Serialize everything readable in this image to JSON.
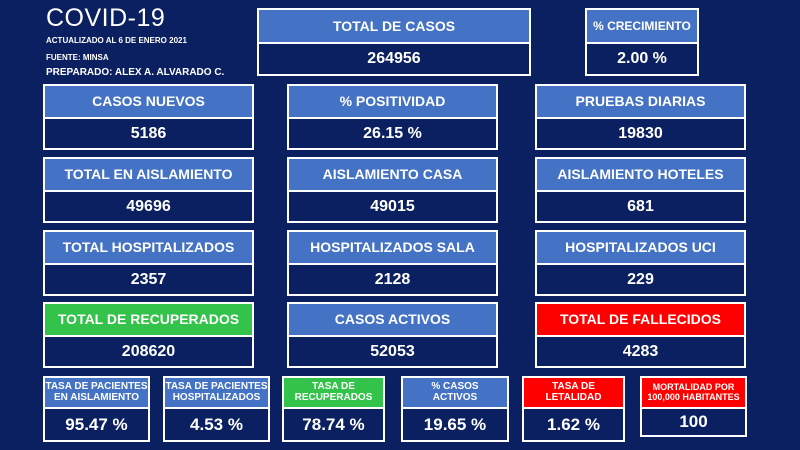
{
  "header": {
    "title": "COVID-19",
    "updated": "ACTUALIZADO AL 6 DE ENERO 2021",
    "source": "FUENTE: MINSA",
    "prepared": "PREPARADO:  ALEX A. ALVARADO  C."
  },
  "cards": {
    "total_casos": {
      "label": "TOTAL DE CASOS",
      "value": "264956"
    },
    "crecimiento": {
      "label": "% CRECIMIENTO",
      "value": "2.00 %"
    },
    "casos_nuevos": {
      "label": "CASOS NUEVOS",
      "value": "5186"
    },
    "positividad": {
      "label": "% POSITIVIDAD",
      "value": "26.15 %"
    },
    "pruebas_diarias": {
      "label": "PRUEBAS DIARIAS",
      "value": "19830"
    },
    "total_aislamiento": {
      "label": "TOTAL EN AISLAMIENTO",
      "value": "49696"
    },
    "aislamiento_casa": {
      "label": "AISLAMIENTO CASA",
      "value": "49015"
    },
    "aislamiento_hoteles": {
      "label": "AISLAMIENTO HOTELES",
      "value": "681"
    },
    "total_hospitalizados": {
      "label": "TOTAL HOSPITALIZADOS",
      "value": "2357"
    },
    "hospitalizados_sala": {
      "label": "HOSPITALIZADOS SALA",
      "value": "2128"
    },
    "hospitalizados_uci": {
      "label": "HOSPITALIZADOS UCI",
      "value": "229"
    },
    "total_recuperados": {
      "label": "TOTAL DE RECUPERADOS",
      "value": "208620"
    },
    "casos_activos": {
      "label": "CASOS ACTIVOS",
      "value": "52053"
    },
    "total_fallecidos": {
      "label": "TOTAL DE FALLECIDOS",
      "value": "4283"
    }
  },
  "rates": {
    "tasa_aislamiento": {
      "label_1": "TASA DE PACIENTES",
      "label_2": "EN AISLAMIENTO",
      "value": "95.47 %"
    },
    "tasa_hospitalizados": {
      "label_1": "TASA DE PACIENTES",
      "label_2": "HOSPITALIZADOS",
      "value": "4.53 %"
    },
    "tasa_recuperados": {
      "label_1": "TASA DE",
      "label_2": "RECUPERADOS",
      "value": "78.74 %"
    },
    "casos_activos_pct": {
      "label_1": "% CASOS",
      "label_2": "ACTIVOS",
      "value": "19.65 %"
    },
    "tasa_letalidad": {
      "label_1": "TASA DE",
      "label_2": "LETALIDAD",
      "value": "1.62 %"
    },
    "mortalidad": {
      "label_1": "MORTALIDAD POR",
      "label_2": "100,000 HABITANTES",
      "value": "100"
    }
  },
  "colors": {
    "background": "#0b2060",
    "header_blue": "#4472c4",
    "recuperados_green": "#33c24a",
    "fallecidos_red": "#ff0000"
  }
}
